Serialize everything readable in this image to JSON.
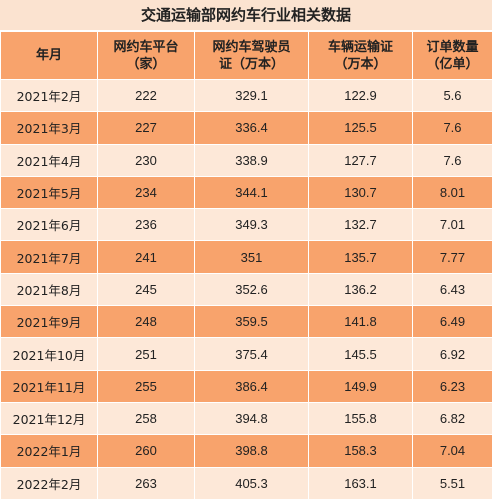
{
  "title": "交通运输部网约车行业相关数据",
  "headers": [
    [
      "年月"
    ],
    [
      "网约车平台",
      "（家）"
    ],
    [
      "网约车驾驶员",
      "证（万本）"
    ],
    [
      "车辆运输证",
      "（万本）"
    ],
    [
      "订单数量",
      "（亿单）"
    ]
  ],
  "rows": [
    [
      "2021年2月",
      "222",
      "329.1",
      "122.9",
      "5.6"
    ],
    [
      "2021年3月",
      "227",
      "336.4",
      "125.5",
      "7.6"
    ],
    [
      "2021年4月",
      "230",
      "338.9",
      "127.7",
      "7.6"
    ],
    [
      "2021年5月",
      "234",
      "344.1",
      "130.7",
      "8.01"
    ],
    [
      "2021年6月",
      "236",
      "349.3",
      "132.7",
      "7.01"
    ],
    [
      "2021年7月",
      "241",
      "351",
      "135.7",
      "7.77"
    ],
    [
      "2021年8月",
      "245",
      "352.6",
      "136.2",
      "6.43"
    ],
    [
      "2021年9月",
      "248",
      "359.5",
      "141.8",
      "6.49"
    ],
    [
      "2021年10月",
      "251",
      "375.4",
      "145.5",
      "6.92"
    ],
    [
      "2021年11月",
      "255",
      "386.4",
      "149.9",
      "6.23"
    ],
    [
      "2021年12月",
      "258",
      "394.8",
      "155.8",
      "6.82"
    ],
    [
      "2022年1月",
      "260",
      "398.8",
      "158.3",
      "7.04"
    ],
    [
      "2022年2月",
      "263",
      "405.3",
      "163.1",
      "5.51"
    ]
  ],
  "colors": {
    "header_bg": "#f8a36c",
    "row_light": "#fde8d8",
    "row_dark": "#f8a36c",
    "title_bg": "#fbe3d0"
  }
}
